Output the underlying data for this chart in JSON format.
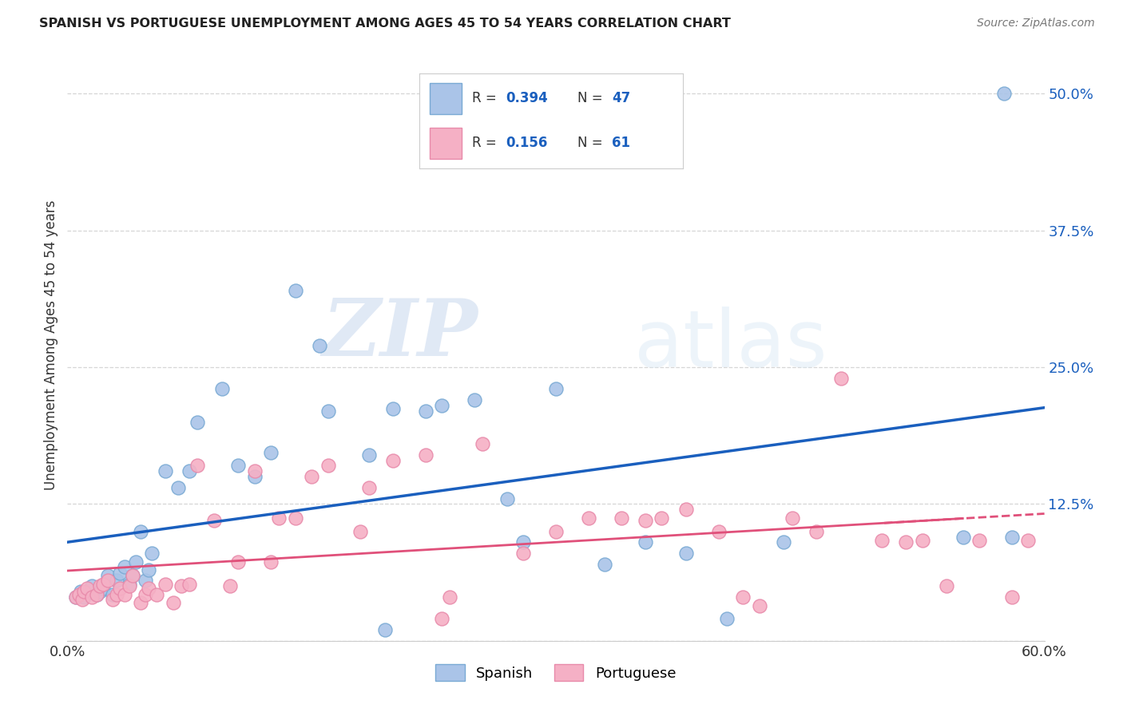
{
  "title": "SPANISH VS PORTUGUESE UNEMPLOYMENT AMONG AGES 45 TO 54 YEARS CORRELATION CHART",
  "source": "Source: ZipAtlas.com",
  "ylabel": "Unemployment Among Ages 45 to 54 years",
  "xlim": [
    0.0,
    0.6
  ],
  "ylim": [
    0.0,
    0.54
  ],
  "xticks": [
    0.0,
    0.1,
    0.2,
    0.3,
    0.4,
    0.5,
    0.6
  ],
  "xticklabels": [
    "0.0%",
    "",
    "",
    "",
    "",
    "",
    "60.0%"
  ],
  "yticks": [
    0.0,
    0.125,
    0.25,
    0.375,
    0.5
  ],
  "yticklabels": [
    "",
    "12.5%",
    "25.0%",
    "37.5%",
    "50.0%"
  ],
  "spanish_color": "#aac4e8",
  "portuguese_color": "#f5b0c5",
  "spanish_edge": "#7aaad4",
  "portuguese_edge": "#e88aaa",
  "trend_spanish_color": "#1a5fbe",
  "trend_portuguese_color": "#e0507a",
  "R_spanish": 0.394,
  "N_spanish": 47,
  "R_portuguese": 0.156,
  "N_portuguese": 61,
  "spanish_x": [
    0.005,
    0.008,
    0.01,
    0.015,
    0.018,
    0.02,
    0.022,
    0.025,
    0.028,
    0.03,
    0.032,
    0.035,
    0.038,
    0.04,
    0.042,
    0.045,
    0.048,
    0.05,
    0.052,
    0.06,
    0.068,
    0.075,
    0.08,
    0.095,
    0.105,
    0.115,
    0.125,
    0.14,
    0.155,
    0.16,
    0.185,
    0.195,
    0.2,
    0.22,
    0.23,
    0.25,
    0.27,
    0.28,
    0.3,
    0.33,
    0.355,
    0.38,
    0.405,
    0.44,
    0.55,
    0.575,
    0.58
  ],
  "spanish_y": [
    0.04,
    0.045,
    0.04,
    0.05,
    0.042,
    0.045,
    0.048,
    0.06,
    0.042,
    0.055,
    0.062,
    0.068,
    0.052,
    0.06,
    0.072,
    0.1,
    0.055,
    0.065,
    0.08,
    0.155,
    0.14,
    0.155,
    0.2,
    0.23,
    0.16,
    0.15,
    0.172,
    0.32,
    0.27,
    0.21,
    0.17,
    0.01,
    0.212,
    0.21,
    0.215,
    0.22,
    0.13,
    0.09,
    0.23,
    0.07,
    0.09,
    0.08,
    0.02,
    0.09,
    0.095,
    0.5,
    0.095
  ],
  "portuguese_x": [
    0.005,
    0.007,
    0.009,
    0.01,
    0.012,
    0.015,
    0.018,
    0.02,
    0.022,
    0.025,
    0.028,
    0.03,
    0.032,
    0.035,
    0.038,
    0.04,
    0.045,
    0.048,
    0.05,
    0.055,
    0.06,
    0.065,
    0.07,
    0.075,
    0.08,
    0.09,
    0.1,
    0.105,
    0.115,
    0.125,
    0.13,
    0.14,
    0.15,
    0.16,
    0.18,
    0.185,
    0.2,
    0.22,
    0.23,
    0.235,
    0.255,
    0.28,
    0.3,
    0.32,
    0.34,
    0.355,
    0.365,
    0.38,
    0.4,
    0.415,
    0.425,
    0.445,
    0.46,
    0.475,
    0.5,
    0.515,
    0.525,
    0.54,
    0.56,
    0.58,
    0.59
  ],
  "portuguese_y": [
    0.04,
    0.042,
    0.038,
    0.045,
    0.048,
    0.04,
    0.042,
    0.05,
    0.052,
    0.055,
    0.038,
    0.042,
    0.048,
    0.042,
    0.05,
    0.06,
    0.035,
    0.042,
    0.048,
    0.042,
    0.052,
    0.035,
    0.05,
    0.052,
    0.16,
    0.11,
    0.05,
    0.072,
    0.155,
    0.072,
    0.112,
    0.112,
    0.15,
    0.16,
    0.1,
    0.14,
    0.165,
    0.17,
    0.02,
    0.04,
    0.18,
    0.08,
    0.1,
    0.112,
    0.112,
    0.11,
    0.112,
    0.12,
    0.1,
    0.04,
    0.032,
    0.112,
    0.1,
    0.24,
    0.092,
    0.09,
    0.092,
    0.05,
    0.092,
    0.04,
    0.092
  ],
  "watermark_zip": "ZIP",
  "watermark_atlas": "atlas",
  "background_color": "#ffffff",
  "grid_color": "#cccccc"
}
